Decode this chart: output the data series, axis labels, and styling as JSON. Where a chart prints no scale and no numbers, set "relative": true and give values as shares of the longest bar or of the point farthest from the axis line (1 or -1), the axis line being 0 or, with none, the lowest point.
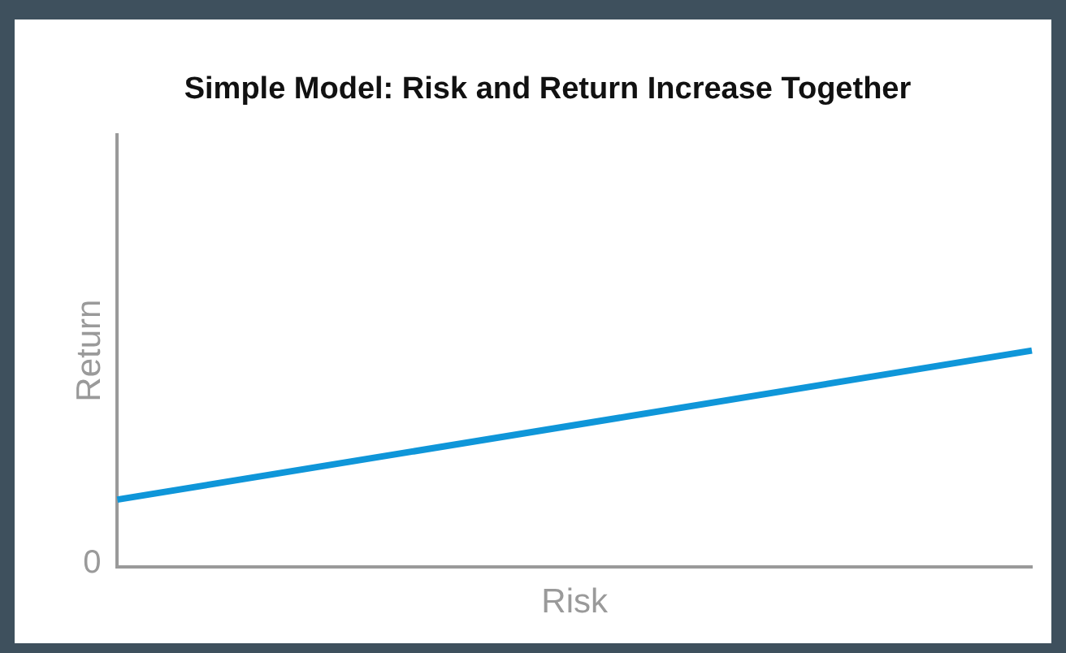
{
  "chart_data": {
    "type": "line",
    "title": "Simple Model: Risk and Return Increase Together",
    "xlabel": "Risk",
    "ylabel": "Return",
    "relative": true,
    "categories": [
      null,
      null
    ],
    "series": [
      {
        "color": "#0f96d9",
        "values": [
          0.31,
          1
        ]
      }
    ],
    "annotations": [
      "0"
    ],
    "grid": false,
    "legend": false,
    "marker": "none",
    "line_style": "solid"
  }
}
